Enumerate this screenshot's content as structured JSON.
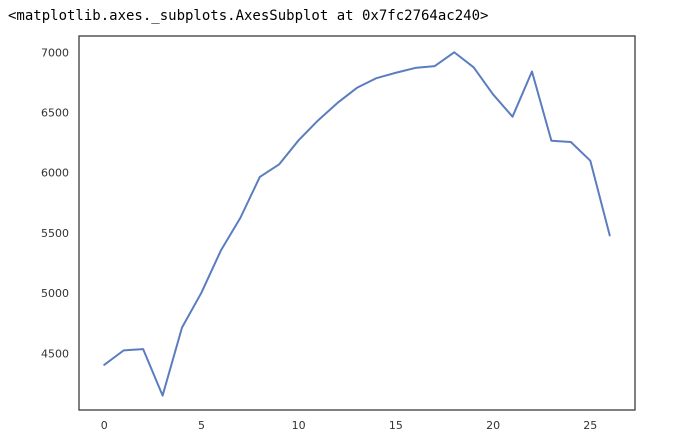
{
  "output_repr": "<matplotlib.axes._subplots.AxesSubplot at 0x7fc2764ac240>",
  "chart_data": {
    "type": "line",
    "title": "",
    "xlabel": "",
    "ylabel": "",
    "x": [
      0,
      1,
      2,
      3,
      4,
      5,
      6,
      7,
      8,
      9,
      10,
      11,
      12,
      13,
      14,
      15,
      16,
      17,
      18,
      19,
      20,
      21,
      22,
      23,
      24,
      25,
      26
    ],
    "series": [
      {
        "values": [
          4405,
          4525,
          4535,
          4150,
          4715,
          5005,
          5355,
          5625,
          5965,
          6070,
          6270,
          6435,
          6580,
          6705,
          6785,
          6830,
          6870,
          6885,
          7000,
          6875,
          6650,
          6465,
          6840,
          6265,
          6255,
          6100,
          5480
        ],
        "color": "#5b7dbf"
      }
    ],
    "xlim": [
      -1.3,
      27.3
    ],
    "ylim": [
      4030,
      7135
    ],
    "xticks": [
      0,
      5,
      10,
      15,
      20,
      25
    ],
    "yticks": [
      4500,
      5000,
      5500,
      6000,
      6500,
      7000
    ],
    "grid": false,
    "legend": "none"
  }
}
